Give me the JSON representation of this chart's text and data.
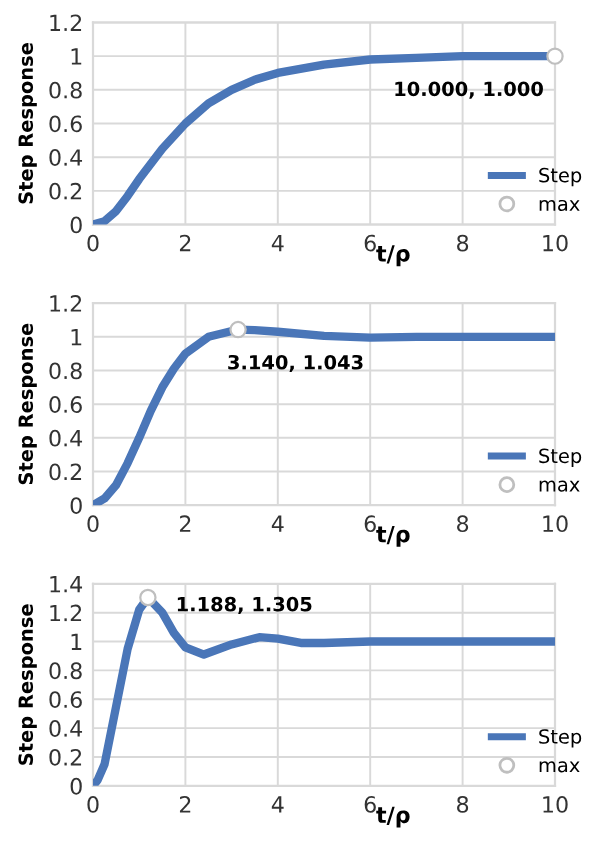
{
  "chart_data": [
    {
      "type": "line",
      "ylabel": "Step Response",
      "xlabel": "t/ρ",
      "xlim": [
        0,
        10
      ],
      "xticks": [
        0,
        2,
        4,
        6,
        8,
        10
      ],
      "ylim": [
        0,
        1.2
      ],
      "yticks": [
        0,
        0.2,
        0.4,
        0.6,
        0.8,
        1,
        1.2
      ],
      "grid": true,
      "legend": "bottom right",
      "series": [
        {
          "name": "Step",
          "color": "#4a76b8",
          "x": [
            0,
            0.25,
            0.5,
            0.75,
            1,
            1.5,
            2,
            2.5,
            3,
            3.5,
            4,
            5,
            6,
            7,
            8,
            10
          ],
          "values": [
            0,
            0.02,
            0.08,
            0.17,
            0.27,
            0.45,
            0.6,
            0.72,
            0.8,
            0.86,
            0.9,
            0.95,
            0.98,
            0.99,
            1.0,
            1.0
          ]
        },
        {
          "name": "max",
          "type": "scatter",
          "marker": "circle",
          "color": "#ffffff",
          "x": [
            10
          ],
          "values": [
            1.0
          ]
        }
      ],
      "annotations": [
        {
          "text": "10.000, 1.000",
          "x": 10,
          "y": 1.0
        }
      ]
    },
    {
      "type": "line",
      "ylabel": "Step Response",
      "xlabel": "t/ρ",
      "xlim": [
        0,
        10
      ],
      "xticks": [
        0,
        2,
        4,
        6,
        8,
        10
      ],
      "ylim": [
        0,
        1.2
      ],
      "yticks": [
        0,
        0.2,
        0.4,
        0.6,
        0.8,
        1,
        1.2
      ],
      "grid": true,
      "legend": "bottom right",
      "series": [
        {
          "name": "Step",
          "color": "#4a76b8",
          "x": [
            0,
            0.25,
            0.5,
            0.75,
            1,
            1.25,
            1.5,
            1.75,
            2,
            2.5,
            3.14,
            3.5,
            4,
            5,
            6,
            7,
            8,
            10
          ],
          "values": [
            0,
            0.04,
            0.12,
            0.25,
            0.4,
            0.56,
            0.7,
            0.81,
            0.9,
            1.0,
            1.043,
            1.04,
            1.03,
            1.005,
            0.995,
            1.0,
            1.0,
            1.0
          ]
        },
        {
          "name": "max",
          "type": "scatter",
          "marker": "circle",
          "color": "#ffffff",
          "x": [
            3.14
          ],
          "values": [
            1.043
          ]
        }
      ],
      "annotations": [
        {
          "text": "3.140, 1.043",
          "x": 3.14,
          "y": 1.043
        }
      ]
    },
    {
      "type": "line",
      "ylabel": "Step Response",
      "xlabel": "t/ρ",
      "xlim": [
        0,
        10
      ],
      "xticks": [
        0,
        2,
        4,
        6,
        8,
        10
      ],
      "ylim": [
        0,
        1.4
      ],
      "yticks": [
        0,
        0.2,
        0.4,
        0.6,
        0.8,
        1,
        1.2,
        1.4
      ],
      "grid": true,
      "legend": "bottom right",
      "series": [
        {
          "name": "Step",
          "color": "#4a76b8",
          "x": [
            0,
            0.1,
            0.25,
            0.5,
            0.75,
            1,
            1.188,
            1.5,
            1.75,
            2,
            2.4,
            3,
            3.6,
            4,
            4.5,
            5,
            6,
            7,
            8,
            10
          ],
          "values": [
            0,
            0.04,
            0.15,
            0.55,
            0.95,
            1.22,
            1.305,
            1.2,
            1.06,
            0.96,
            0.91,
            0.98,
            1.03,
            1.02,
            0.99,
            0.99,
            1.0,
            1.0,
            1.0,
            1.0
          ]
        },
        {
          "name": "max",
          "type": "scatter",
          "marker": "circle",
          "color": "#ffffff",
          "x": [
            1.188
          ],
          "values": [
            1.305
          ]
        }
      ],
      "annotations": [
        {
          "text": "1.188, 1.305",
          "x": 1.188,
          "y": 1.305
        }
      ]
    }
  ]
}
